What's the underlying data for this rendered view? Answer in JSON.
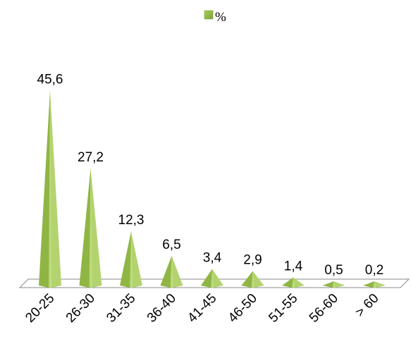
{
  "chart_data": {
    "type": "bar",
    "bar_shape": "pyramid",
    "title": "",
    "xlabel": "",
    "ylabel": "",
    "legend_position": "top-center",
    "series": [
      {
        "name": "%",
        "values": [
          45.6,
          27.2,
          12.3,
          6.5,
          3.4,
          2.9,
          1.4,
          0.5,
          0.2
        ],
        "data_labels": [
          "45,6",
          "27,2",
          "12,3",
          "6,5",
          "3,4",
          "2,9",
          "1,4",
          "0,5",
          "0,2"
        ],
        "color": "#8db33f"
      }
    ],
    "categories": [
      "20-25",
      "26-30",
      "31-35",
      "36-40",
      "41-45",
      "46-50",
      "51-55",
      "56-60",
      "> 60"
    ],
    "ylim": [
      0,
      46
    ],
    "grid": false
  }
}
